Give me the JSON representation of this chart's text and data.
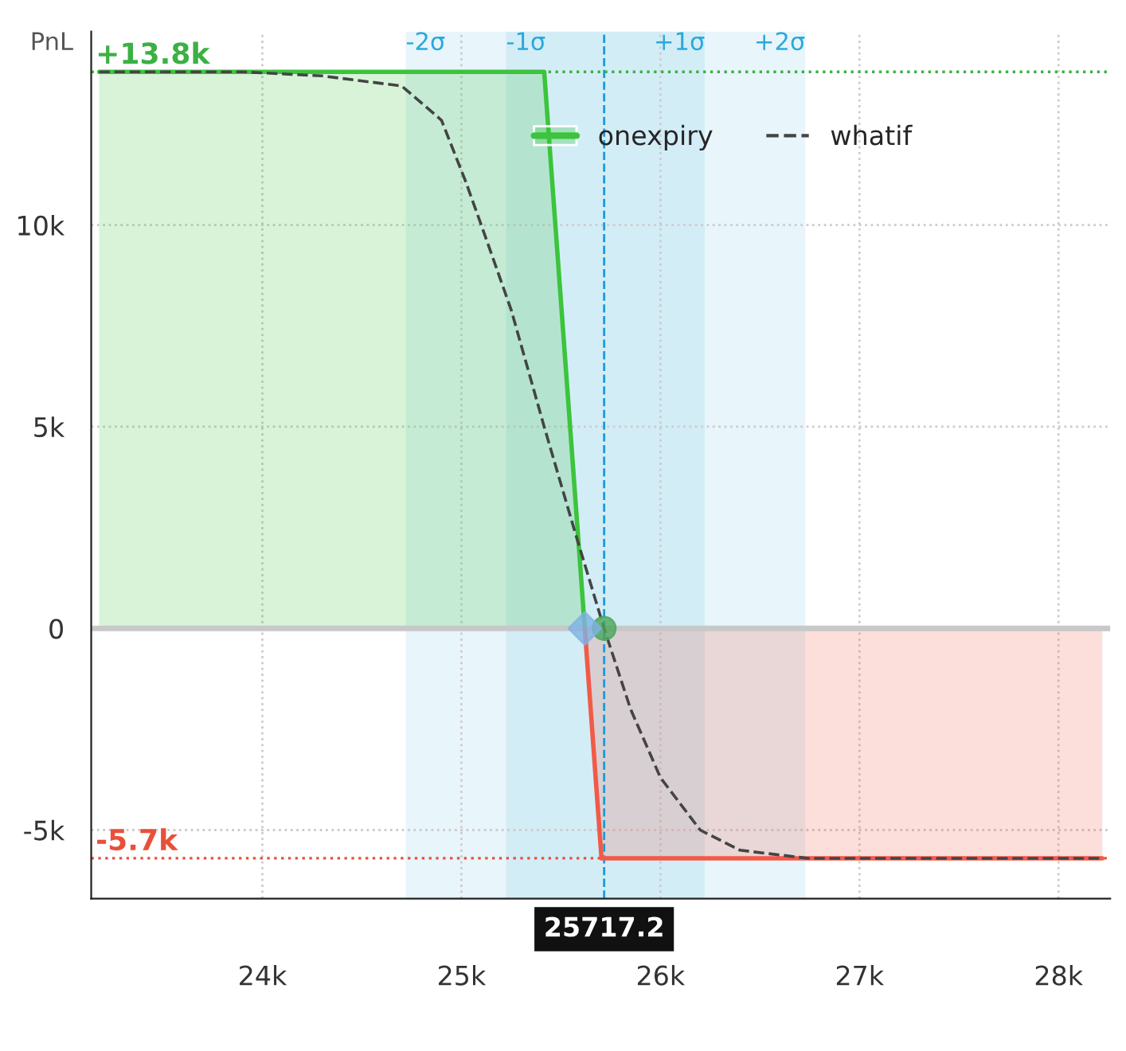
{
  "chart_data": {
    "type": "line",
    "ylabel": "PnL",
    "xlim": [
      23140,
      28260
    ],
    "ylim": [
      -6700,
      14800
    ],
    "xticks": [
      {
        "value": 24000,
        "label": "24k"
      },
      {
        "value": 25000,
        "label": "25k"
      },
      {
        "value": 26000,
        "label": "26k"
      },
      {
        "value": 27000,
        "label": "27k"
      },
      {
        "value": 28000,
        "label": "28k"
      }
    ],
    "yticks": [
      {
        "value": -5000,
        "label": "-5k"
      },
      0,
      {
        "value": 5000,
        "label": "5k"
      },
      {
        "value": 10000,
        "label": "10k"
      }
    ],
    "grid": true,
    "legend": "top",
    "series": [
      {
        "name": "onexpiry",
        "type": "area",
        "color": "#3cc43c",
        "x": [
          23180,
          25416,
          25620
        ],
        "values": [
          13800,
          13800,
          0
        ]
      },
      {
        "type": "area",
        "color": "#f25a48",
        "x": [
          25620,
          25704,
          28220
        ],
        "values": [
          0,
          -5700,
          -5700
        ]
      },
      {
        "name": "whatif",
        "line_style": "dashed",
        "color": "#444444",
        "x": [
          23180,
          23900,
          24300,
          24700,
          24900,
          25020,
          25100,
          25250,
          25416,
          25570,
          25717,
          25850,
          26000,
          26200,
          26400,
          26740,
          28220
        ],
        "values": [
          13800,
          13800,
          13700,
          13450,
          12600,
          11100,
          10000,
          7900,
          5000,
          2400,
          0,
          -2000,
          -3700,
          -5000,
          -5500,
          -5700,
          -5700
        ]
      },
      {
        "type": "scatter",
        "marker": "circle",
        "color": "#4aa55a",
        "x": [
          25717.2
        ],
        "values": [
          0
        ]
      },
      {
        "type": "scatter",
        "marker": "diamond",
        "color": "#7fb2e5",
        "x": [
          25620
        ],
        "values": [
          0
        ]
      }
    ],
    "bands": [
      {
        "axis": "x",
        "from": 24720,
        "to": 25224,
        "label": "-2σ",
        "color": "#e8f5fb"
      },
      {
        "axis": "x",
        "from": 25224,
        "to": 25717.2,
        "label": "-1σ",
        "color": "#d3edf6"
      },
      {
        "axis": "x",
        "from": 25717.2,
        "to": 26224,
        "label": "+1σ",
        "color": "#d3edf6"
      },
      {
        "axis": "x",
        "from": 26224,
        "to": 26728,
        "label": "+2σ",
        "color": "#e8f5fb"
      }
    ],
    "ref_lines": [
      {
        "axis": "x",
        "value": 25717.2,
        "label": "25717.2",
        "color": "#1a9bd7",
        "line_style": "dashed"
      },
      {
        "axis": "y",
        "value": 13800,
        "label": "+13.8k",
        "color": "#3cb043",
        "line_style": "dotted"
      },
      {
        "axis": "y",
        "value": -5700,
        "label": "-5.7k",
        "color": "#e8503a",
        "line_style": "dotted"
      },
      {
        "axis": "y",
        "value": 0,
        "color": "#c8c8c8",
        "line_style": "solid"
      }
    ]
  }
}
